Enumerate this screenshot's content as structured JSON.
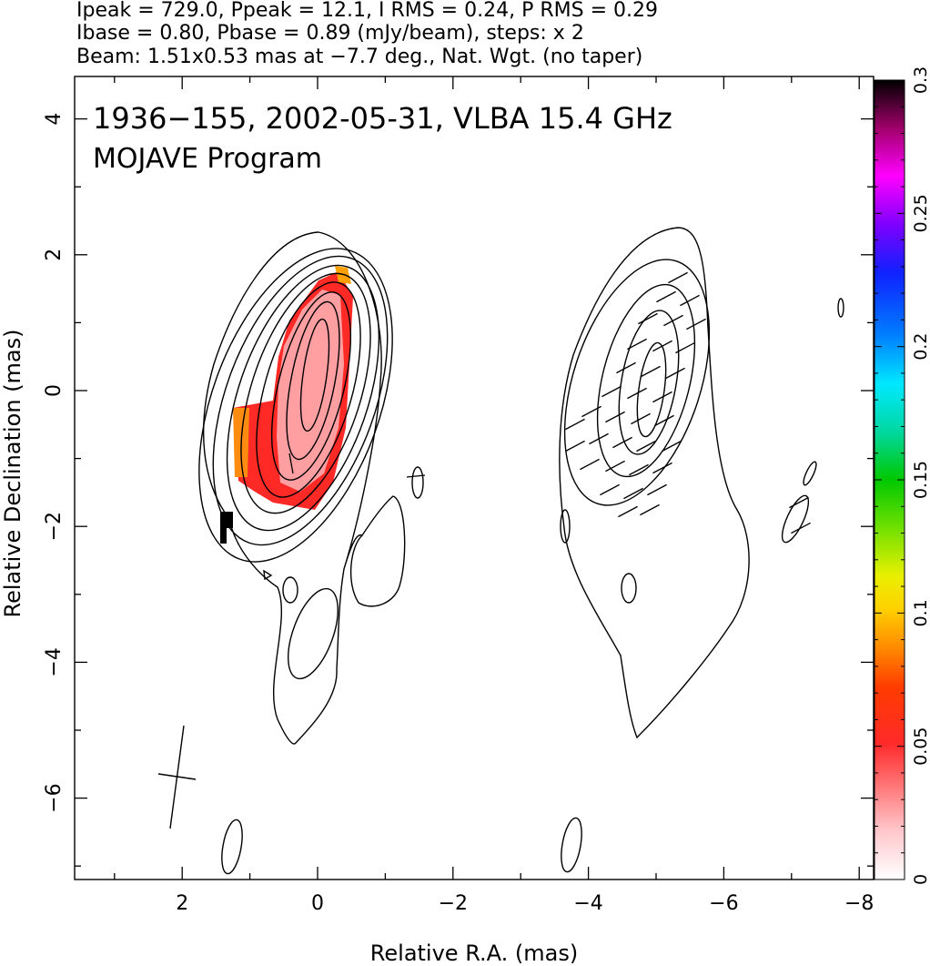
{
  "header": {
    "line1": "Ipeak = 729.0, Ppeak = 12.1, I RMS = 0.24, P RMS = 0.29",
    "line2": "Ibase = 0.80, Pbase = 0.89 (mJy/beam), steps: x 2",
    "line3": "Beam: 1.51x0.53 mas at −7.7 deg., Nat. Wgt. (no taper)"
  },
  "chart_data": {
    "type": "contour",
    "title": "1936−155, 2002-05-31, VLBA 15.4 GHz",
    "subtitle": "MOJAVE Program",
    "xlabel": "Relative R.A. (mas)",
    "ylabel": "Relative Declination (mas)",
    "xlim": [
      3.5,
      -8.2
    ],
    "ylim": [
      -7.2,
      4.7
    ],
    "x_ticks": [
      2,
      0,
      -2,
      -4,
      -6,
      -8
    ],
    "x_tick_labels": [
      "2",
      "0",
      "−2",
      "−4",
      "−6",
      "−8"
    ],
    "y_ticks": [
      4,
      2,
      0,
      -2,
      -4,
      -6
    ],
    "y_tick_labels": [
      "4",
      "2",
      "0",
      "−2",
      "−4",
      "−6"
    ],
    "colorbar": {
      "range": [
        0,
        0.3
      ],
      "ticks": [
        0,
        0.05,
        0.1,
        0.15,
        0.2,
        0.25,
        0.3
      ],
      "tick_labels": [
        "0",
        "0.05",
        "0.1",
        "0.15",
        "0.2",
        "0.25",
        "0.3"
      ]
    },
    "beam": {
      "major_mas": 1.51,
      "minor_mas": 0.53,
      "pa_deg": -7.7
    },
    "panels": [
      {
        "name": "Stokes I contours + fractional polarization",
        "ra_center": 0.0,
        "dec_center": 0.0
      },
      {
        "name": "Polarized intensity contours + EVPA ticks",
        "ra_center": -4.9,
        "dec_center": 0.0
      }
    ]
  }
}
